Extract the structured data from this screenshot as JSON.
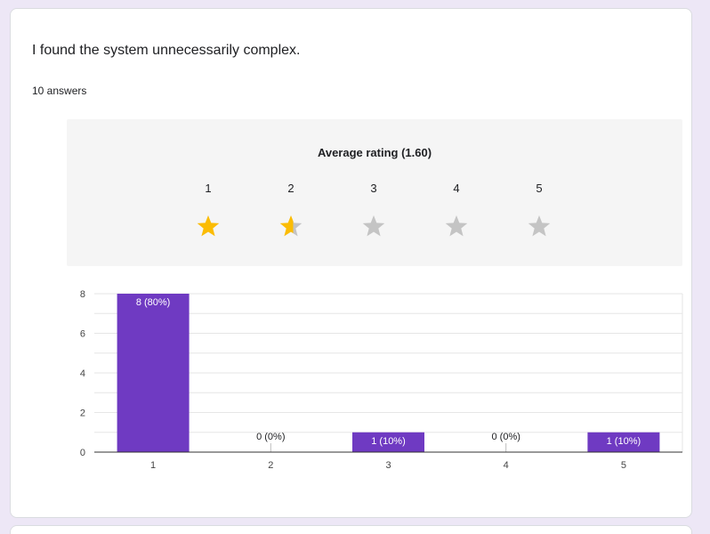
{
  "question": "I found the system unnecessarily complex.",
  "answers_label": "10 answers",
  "rating": {
    "title": "Average rating (1.60)",
    "average": 1.6,
    "scale": [
      "1",
      "2",
      "3",
      "4",
      "5"
    ]
  },
  "colors": {
    "bar": "#6f3ac2",
    "star_filled": "#fbbc04",
    "star_empty": "#c4c4c4"
  },
  "chart_data": {
    "type": "bar",
    "categories": [
      "1",
      "2",
      "3",
      "4",
      "5"
    ],
    "values": [
      8,
      0,
      1,
      0,
      1
    ],
    "data_labels": [
      "8 (80%)",
      "0 (0%)",
      "1 (10%)",
      "0 (0%)",
      "1 (10%)"
    ],
    "y_ticks": [
      0,
      2,
      4,
      6,
      8
    ],
    "ylim": [
      0,
      8
    ],
    "grid": true,
    "title": "",
    "xlabel": "",
    "ylabel": ""
  }
}
